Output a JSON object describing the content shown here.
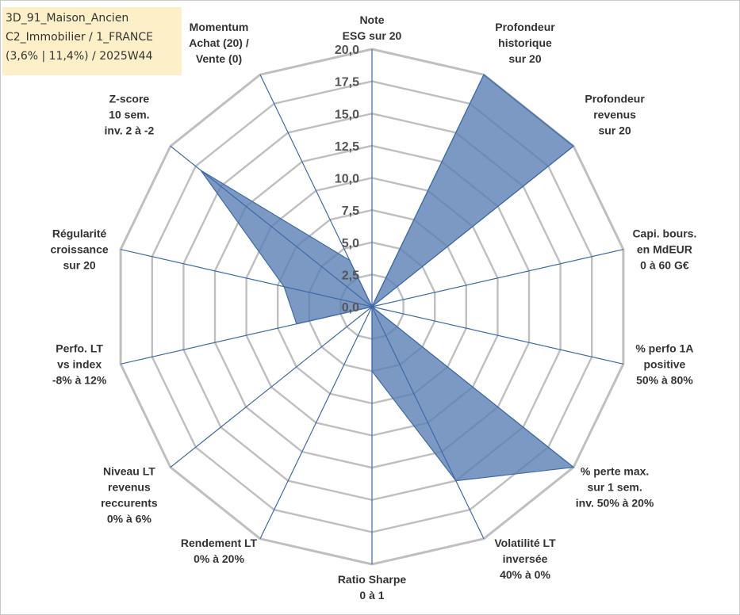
{
  "title": {
    "lines": [
      "3D_91_Maison_Ancien",
      "C2_Immobilier / 1_FRANCE",
      "(3,6% | 11,4%) / 2025W44"
    ]
  },
  "chart_data": {
    "type": "radar",
    "rmin": 0,
    "rmax": 20,
    "tick_step": 2.5,
    "tick_labels": [
      "0,0",
      "2,5",
      "5,0",
      "7,5",
      "10,0",
      "12,5",
      "15,0",
      "17,5",
      "20,0"
    ],
    "grid": true,
    "axes": [
      [
        "Note",
        "ESG sur 20"
      ],
      [
        "Profondeur",
        "historique",
        "sur 20"
      ],
      [
        "Profondeur",
        "revenus",
        "sur 20"
      ],
      [
        "Capi. bours.",
        "en MdEUR",
        "0 à 60 G€"
      ],
      [
        "% perfo 1A",
        "positive",
        "50% à 80%"
      ],
      [
        "% perte max.",
        "sur 1 sem.",
        "inv. 50% à 20%"
      ],
      [
        "Volatilité LT",
        "inversée",
        "40% à 0%"
      ],
      [
        "Ratio Sharpe",
        "0 à 1"
      ],
      [
        "Rendement LT",
        "0% à 20%"
      ],
      [
        "Niveau LT",
        "revenus",
        "reccurents",
        "0% à 6%"
      ],
      [
        "Perfo. LT",
        "vs index",
        "-8% à 12%"
      ],
      [
        "Régularité",
        "croissance",
        "sur 20"
      ],
      [
        "Z-score",
        "10 sem.",
        "inv. 2 à -2"
      ],
      [
        "Momentum",
        "Achat (20) /",
        "Vente (0)"
      ]
    ],
    "series": [
      {
        "values": [
          0,
          20,
          20,
          0,
          0,
          20,
          15,
          5,
          0,
          0,
          6,
          7,
          17,
          4
        ],
        "color": "#5b80b4",
        "opacity": 0.8,
        "stroke": "#3e6aa8"
      }
    ],
    "colors": {
      "grid": "#bfbfbf",
      "spoke": "#3e6aa8",
      "title_bg": "#fdf0c8"
    }
  }
}
